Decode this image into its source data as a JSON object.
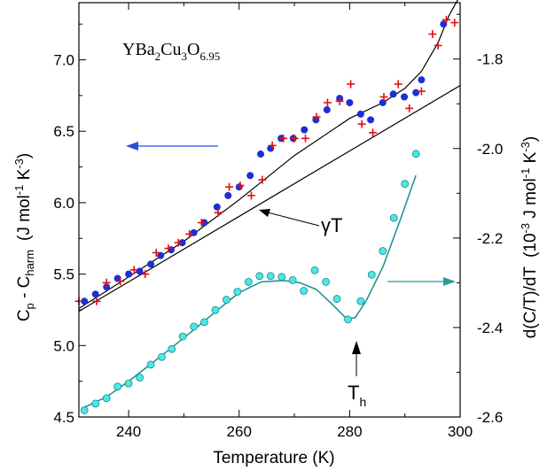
{
  "chart_data": {
    "type": "scatter",
    "title": "",
    "formula": {
      "parts": [
        "YBa",
        "2",
        "Cu",
        "3",
        "O",
        "6.95"
      ]
    },
    "xlabel": "Temperature (K)",
    "xlim": [
      231,
      300
    ],
    "xticks": [
      240,
      260,
      280,
      300
    ],
    "y_left": {
      "label": {
        "main": "C",
        "sub1": "p",
        "mid": " - C",
        "sub2": "harm",
        "units": "(J mol",
        "sup1": "-1",
        "units2": " K",
        "sup2": "-3",
        "close": ")"
      },
      "lim": [
        4.5,
        7.4
      ],
      "ticks": [
        4.5,
        5.0,
        5.5,
        6.0,
        6.5,
        7.0
      ],
      "tick_labels": [
        "4.5",
        "5.0",
        "5.5",
        "6.0",
        "6.5",
        "7.0"
      ]
    },
    "y_right": {
      "label": {
        "main": "d(C/T)/dT",
        "units": "(10",
        "sup1": "-3",
        "units2": " J mol",
        "sup2": "-1",
        "units3": " K",
        "sup3": "-3",
        "close": ")"
      },
      "lim": [
        -2.6,
        -1.674
      ],
      "ticks": [
        -2.6,
        -2.4,
        -2.2,
        -2.0,
        -1.8
      ],
      "tick_labels": [
        "-2.6",
        "-2.4",
        "-2.2",
        "-2.0",
        "-1.8"
      ]
    },
    "colors": {
      "blue_points": "#1a2fd6",
      "red_crosses": "#e01010",
      "cyan_points": "#4fe6e6",
      "cyan_outline": "#118a8a",
      "cyan_line": "#1a8e8e",
      "left_arrow": "#2a4ddd",
      "right_arrow": "#2a9a9a"
    },
    "series": [
      {
        "name": "",
        "axis": "left",
        "marker": "circle",
        "x": [
          232.0,
          234.0,
          236.0,
          238.0,
          240.0,
          242.0,
          244.0,
          245.8,
          247.7,
          249.7,
          251.8,
          253.7,
          256.0,
          258.0,
          260.0,
          262.0,
          263.9,
          265.7,
          267.6,
          269.8,
          271.8,
          273.9,
          275.9,
          278.2,
          280.0,
          282.0,
          283.8,
          286.0,
          287.9,
          289.9,
          292.0,
          293.0,
          297.0
        ],
        "y": [
          5.31,
          5.36,
          5.41,
          5.47,
          5.5,
          5.52,
          5.57,
          5.63,
          5.67,
          5.72,
          5.79,
          5.86,
          5.97,
          6.05,
          6.11,
          6.19,
          6.34,
          6.38,
          6.45,
          6.45,
          6.51,
          6.58,
          6.65,
          6.73,
          6.7,
          6.62,
          6.58,
          6.7,
          6.76,
          6.74,
          6.77,
          6.86,
          7.25
        ]
      },
      {
        "name": "",
        "axis": "left",
        "marker": "plus",
        "x": [
          231.0,
          234.2,
          236.0,
          238.5,
          241.0,
          243.0,
          245.0,
          247.2,
          249.0,
          251.0,
          253.2,
          256.2,
          258.2,
          260.2,
          262.2,
          264.2,
          266.0,
          268.0,
          270.0,
          272.0,
          274.0,
          276.0,
          278.2,
          280.2,
          282.2,
          284.2,
          286.2,
          288.8,
          290.8,
          293.0,
          295.0,
          296.0,
          297.5,
          299.0
        ],
        "y": [
          5.31,
          5.31,
          5.44,
          5.45,
          5.53,
          5.5,
          5.65,
          5.68,
          5.72,
          5.78,
          5.86,
          5.93,
          6.11,
          6.12,
          6.05,
          6.16,
          6.4,
          6.45,
          6.45,
          6.45,
          6.6,
          6.7,
          6.71,
          6.83,
          6.55,
          6.49,
          6.74,
          6.83,
          6.66,
          6.78,
          7.18,
          7.1,
          7.28,
          7.26
        ]
      },
      {
        "name": "",
        "axis": "right",
        "marker": "circle",
        "x": [
          232.0,
          234.0,
          236.0,
          238.0,
          240.0,
          242.0,
          244.0,
          246.0,
          247.8,
          249.8,
          251.8,
          253.7,
          255.7,
          257.7,
          259.7,
          261.7,
          263.7,
          265.7,
          267.7,
          269.7,
          271.7,
          273.7,
          275.7,
          277.7,
          279.7,
          282.0,
          284.0,
          286.0,
          288.0,
          290.0,
          292.0
        ],
        "y": [
          -2.585,
          -2.57,
          -2.558,
          -2.532,
          -2.525,
          -2.512,
          -2.483,
          -2.466,
          -2.448,
          -2.42,
          -2.398,
          -2.388,
          -2.361,
          -2.338,
          -2.32,
          -2.298,
          -2.285,
          -2.285,
          -2.287,
          -2.294,
          -2.318,
          -2.272,
          -2.298,
          -2.336,
          -2.382,
          -2.341,
          -2.282,
          -2.229,
          -2.155,
          -2.079,
          -2.012
        ]
      }
    ],
    "fit_lines": {
      "gamma_T": {
        "x": [
          231,
          300
        ],
        "y": [
          5.24,
          6.82
        ]
      },
      "left_fit": {
        "x": [
          231,
          240,
          250,
          260,
          270,
          280,
          286,
          290,
          293,
          296,
          298,
          300
        ],
        "y": [
          5.26,
          5.48,
          5.73,
          6.02,
          6.33,
          6.59,
          6.7,
          6.8,
          6.92,
          7.12,
          7.31,
          7.45
        ]
      },
      "right_fit": {
        "x": [
          232,
          236,
          240,
          244,
          248,
          252,
          256,
          260,
          264,
          268,
          271,
          274,
          277,
          279.5,
          281,
          283,
          286,
          289,
          292
        ],
        "y": [
          -2.578,
          -2.555,
          -2.52,
          -2.482,
          -2.443,
          -2.403,
          -2.362,
          -2.322,
          -2.298,
          -2.295,
          -2.3,
          -2.315,
          -2.35,
          -2.381,
          -2.378,
          -2.34,
          -2.265,
          -2.165,
          -2.06
        ]
      }
    },
    "annotations": {
      "gamma_t": {
        "text": "γT"
      },
      "t_h": {
        "main": "T",
        "sub": "h"
      }
    },
    "grid": false,
    "legend": "none"
  }
}
